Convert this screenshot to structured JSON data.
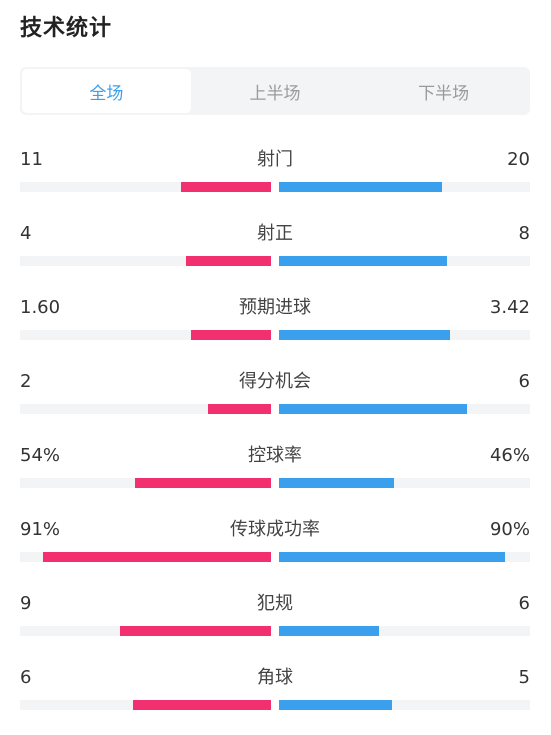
{
  "page": {
    "title": "技术统计"
  },
  "tabs": [
    {
      "label": "全场",
      "active": true
    },
    {
      "label": "上半场",
      "active": false
    },
    {
      "label": "下半场",
      "active": false
    }
  ],
  "colors": {
    "home": "#f2306f",
    "away": "#3aa0ee",
    "track": "#f3f4f6"
  },
  "stats": [
    {
      "label": "射门",
      "home": "11",
      "away": "20",
      "home_fill": 0.36,
      "away_fill": 0.65
    },
    {
      "label": "射正",
      "home": "4",
      "away": "8",
      "home_fill": 0.34,
      "away_fill": 0.67
    },
    {
      "label": "预期进球",
      "home": "1.60",
      "away": "3.42",
      "home_fill": 0.32,
      "away_fill": 0.68
    },
    {
      "label": "得分机会",
      "home": "2",
      "away": "6",
      "home_fill": 0.25,
      "away_fill": 0.75
    },
    {
      "label": "控球率",
      "home": "54%",
      "away": "46%",
      "home_fill": 0.54,
      "away_fill": 0.46
    },
    {
      "label": "传球成功率",
      "home": "91%",
      "away": "90%",
      "home_fill": 0.91,
      "away_fill": 0.9
    },
    {
      "label": "犯规",
      "home": "9",
      "away": "6",
      "home_fill": 0.6,
      "away_fill": 0.4
    },
    {
      "label": "角球",
      "home": "6",
      "away": "5",
      "home_fill": 0.55,
      "away_fill": 0.45
    }
  ]
}
